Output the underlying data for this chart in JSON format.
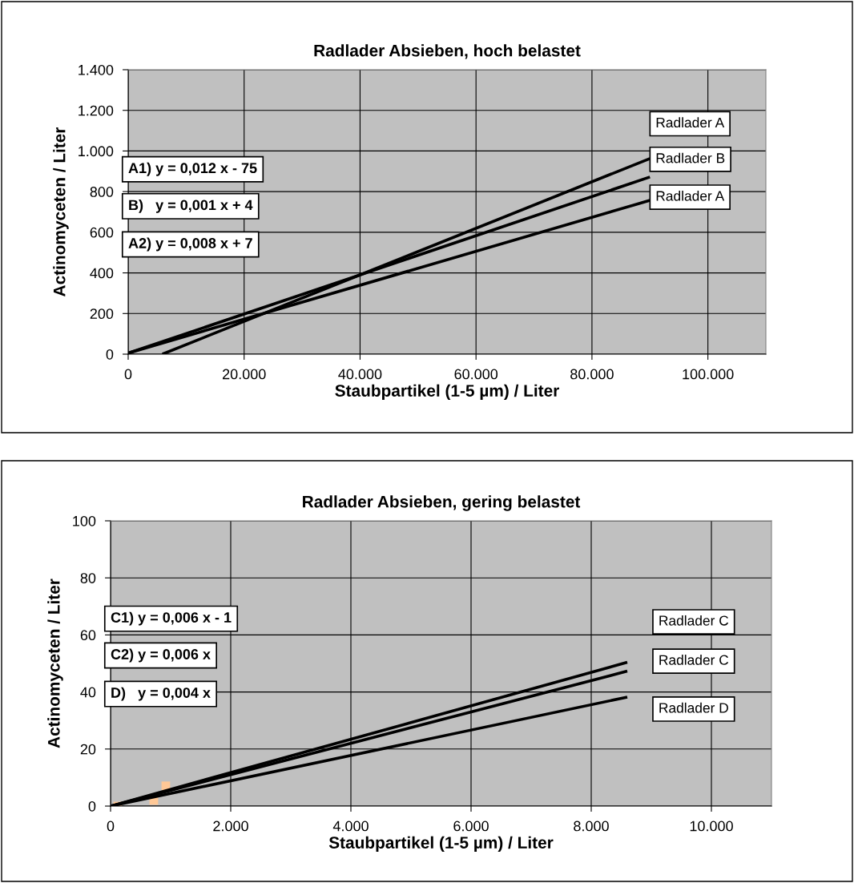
{
  "chart_data": [
    {
      "type": "line",
      "title": "Radlader Absieben, hoch belastet",
      "xlabel": "Staubpartikel (1-5 µm) / Liter",
      "ylabel": "Actinomyceten / Liter",
      "xlim": [
        0,
        110000
      ],
      "ylim": [
        0,
        1400
      ],
      "grid": true,
      "marker": "none",
      "line_style": "solid",
      "xticks": [
        0,
        {
          "value": 20000,
          "label": "20.000"
        },
        {
          "value": 40000,
          "label": "40.000"
        },
        {
          "value": 60000,
          "label": "60.000"
        },
        {
          "value": 80000,
          "label": "80.000"
        },
        {
          "value": 100000,
          "label": "100.000"
        }
      ],
      "yticks": [
        0,
        200,
        400,
        600,
        800,
        {
          "value": 1000,
          "label": "1.000"
        },
        {
          "value": 1200,
          "label": "1.200"
        },
        {
          "value": 1400,
          "label": "1.400"
        }
      ],
      "series": [
        {
          "color": "#000000",
          "x": [
            5900,
            90000
          ],
          "values": [
            0,
            963
          ]
        },
        {
          "color": "#000000",
          "x": [
            0,
            90000
          ],
          "values": [
            5,
            872
          ]
        },
        {
          "color": "#000000",
          "x": [
            0,
            90000
          ],
          "values": [
            5,
            757
          ]
        }
      ],
      "annotations": [
        "A1) y = 0,012 x - 75",
        "B)   y = 0,001 x + 4",
        "A2) y = 0,008 x + 7",
        "Radlader A",
        "Radlader B",
        "Radlader A"
      ]
    },
    {
      "type": "line",
      "title": "Radlader Absieben, gering belastet",
      "xlabel": "Staubpartikel (1-5 µm) / Liter",
      "ylabel": "Actinomyceten / Liter",
      "xlim": [
        0,
        11000
      ],
      "ylim": [
        0,
        100
      ],
      "grid": true,
      "marker": "none",
      "line_style": "solid",
      "xticks": [
        0,
        {
          "value": 2000,
          "label": "2.000"
        },
        {
          "value": 4000,
          "label": "4.000"
        },
        {
          "value": 6000,
          "label": "6.000"
        },
        {
          "value": 8000,
          "label": "8.000"
        },
        {
          "value": 10000,
          "label": "10.000"
        }
      ],
      "yticks": [
        0,
        20,
        40,
        60,
        80,
        100
      ],
      "series": [
        {
          "type": "scatter",
          "marker": "square",
          "color": "#ffc896",
          "x": [
            120,
            720,
            920
          ],
          "values": [
            0,
            2,
            7.1
          ]
        },
        {
          "color": "#000000",
          "x": [
            0,
            8600
          ],
          "values": [
            0,
            50.4
          ]
        },
        {
          "color": "#000000",
          "x": [
            0,
            8600
          ],
          "values": [
            0,
            47.3
          ]
        },
        {
          "color": "#000000",
          "x": [
            0,
            8600
          ],
          "values": [
            0,
            38.2
          ]
        }
      ],
      "annotations": [
        "C1) y = 0,006 x - 1",
        "C2) y = 0,006 x",
        "D)   y = 0,004 x",
        "Radlader C",
        "Radlader C",
        "Radlader D"
      ]
    }
  ]
}
